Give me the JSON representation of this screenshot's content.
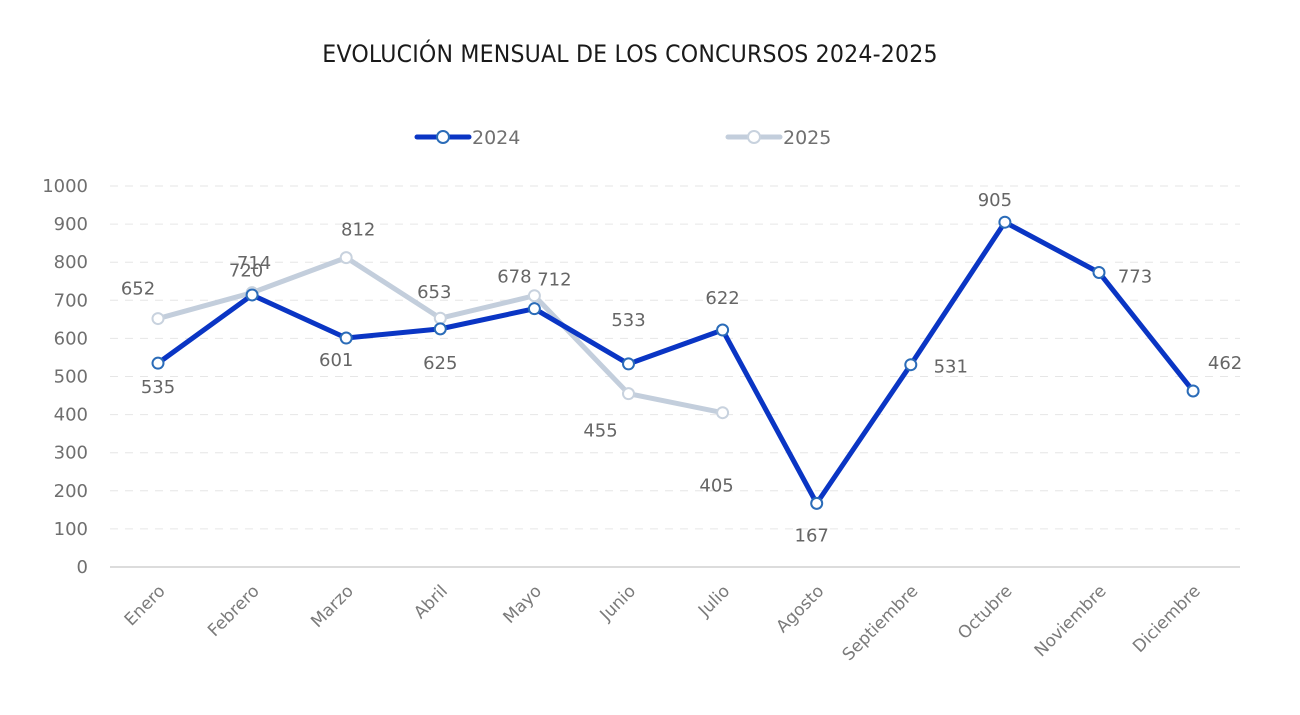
{
  "chart_data": {
    "type": "line",
    "title": "EVOLUCIÓN MENSUAL DE LOS CONCURSOS 2024-2025",
    "xlabel": "",
    "ylabel": "",
    "categories": [
      "Enero",
      "Febrero",
      "Marzo",
      "Abril",
      "Mayo",
      "Junio",
      "Julio",
      "Agosto",
      "Septiembre",
      "Octubre",
      "Noviembre",
      "Diciembre"
    ],
    "ylim": [
      0,
      1000
    ],
    "yticks": [
      0,
      100,
      200,
      300,
      400,
      500,
      600,
      700,
      800,
      900,
      1000
    ],
    "grid": true,
    "legend_position": "top-center",
    "series": [
      {
        "name": "2024",
        "color": "#0a35c4",
        "values": [
          535,
          714,
          601,
          625,
          678,
          533,
          622,
          167,
          531,
          905,
          773,
          462
        ]
      },
      {
        "name": "2025",
        "color": "#c3cedc",
        "values": [
          652,
          720,
          812,
          653,
          712,
          455,
          405,
          null,
          null,
          null,
          null,
          null
        ]
      }
    ]
  }
}
